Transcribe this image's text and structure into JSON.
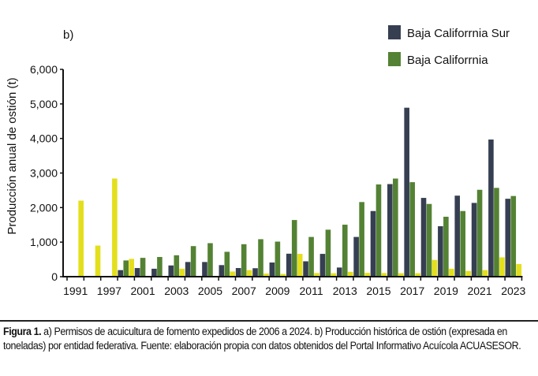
{
  "chart_data": {
    "type": "bar",
    "panel_label": "b)",
    "ylabel": "Producción anual de ostión (t)",
    "xlabel": "",
    "ylim": [
      0,
      6000
    ],
    "yticks": [
      0,
      1000,
      2000,
      3000,
      4000,
      5000,
      6000
    ],
    "ytick_labels": [
      "0",
      "1,000",
      "2,000",
      "3,000",
      "4,000",
      "5,000",
      "6,000"
    ],
    "categories": [
      "1991",
      "1994",
      "1997",
      "2000",
      "2001",
      "2002",
      "2003",
      "2004",
      "2005",
      "2006",
      "2007",
      "2008",
      "2009",
      "2010",
      "2011",
      "2012",
      "2013",
      "2014",
      "2015",
      "2016",
      "2017",
      "2018",
      "2019",
      "2020",
      "2021",
      "2022",
      "2023"
    ],
    "xtick_labels": [
      "1991",
      "",
      "1997",
      "",
      "2001",
      "",
      "2003",
      "",
      "2005",
      "",
      "2007",
      "",
      "2009",
      "",
      "2011",
      "",
      "2013",
      "",
      "2015",
      "",
      "2017",
      "",
      "2019",
      "",
      "2021",
      "",
      "2023"
    ],
    "grid": false,
    "legend_placement": "top-right",
    "series": [
      {
        "name": "Baja Califorrnia Sur",
        "color": "#363f52",
        "values": [
          0,
          0,
          0,
          190,
          250,
          230,
          325,
          425,
          425,
          335,
          250,
          245,
          410,
          665,
          445,
          660,
          265,
          1150,
          1900,
          2680,
          4890,
          2280,
          1460,
          2345,
          2135,
          3970,
          2255
        ]
      },
      {
        "name": "Baja Califorrnia",
        "color": "#548234",
        "values": [
          0,
          0,
          0,
          470,
          545,
          570,
          620,
          885,
          970,
          720,
          940,
          1085,
          1015,
          1640,
          1150,
          1360,
          1505,
          2160,
          2670,
          2840,
          2735,
          2105,
          1735,
          1900,
          2515,
          2570,
          2335
        ]
      },
      {
        "color": "#e3df1c",
        "values": [
          2200,
          900,
          2840,
          515,
          0,
          0,
          230,
          0,
          0,
          150,
          190,
          90,
          80,
          660,
          105,
          100,
          140,
          110,
          105,
          100,
          100,
          485,
          230,
          165,
          190,
          560,
          365
        ]
      }
    ]
  },
  "caption": {
    "label": "Figura 1.",
    "text": " a) Permisos de acuicultura de fomento expedidos de 2006 a 2024. b) Producción histórica de ostión (expresada en toneladas) por entidad federativa. Fuente: elaboración propia con datos obtenidos del Portal Informativo Acuícola ACUASESOR."
  }
}
